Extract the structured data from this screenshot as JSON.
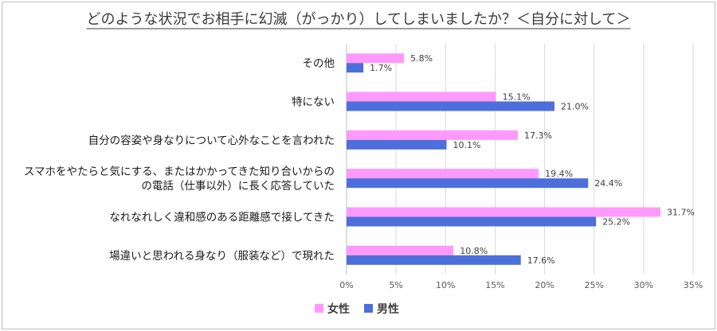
{
  "chart_data": {
    "type": "bar",
    "orientation": "horizontal",
    "title": "どのような状況でお相手に幻滅（がっかり）してしまいましたか？＜自分に対して＞",
    "categories": [
      [
        "その他"
      ],
      [
        "特にない"
      ],
      [
        "自分の容姿や身なりについて心外なことを言われた"
      ],
      [
        "スマホをやたらと気にする、またはかかってきた知り合いからの",
        "の電話（仕事以外）に長く応答していた"
      ],
      [
        "なれなれしく違和感のある距離感で接してきた"
      ],
      [
        "場違いと思われる身なり（服装など）で現れた"
      ]
    ],
    "series": [
      {
        "name": "女性",
        "color": "#ff99ff",
        "values": [
          5.8,
          15.1,
          17.3,
          19.4,
          31.7,
          10.8
        ],
        "labels": [
          "5.8%",
          "15.1%",
          "17.3%",
          "19.4%",
          "31.7%",
          "10.8%"
        ]
      },
      {
        "name": "男性",
        "color": "#4d6fdc",
        "values": [
          1.7,
          21.0,
          10.1,
          24.4,
          25.2,
          17.6
        ],
        "labels": [
          "1.7%",
          "21.0%",
          "10.1%",
          "24.4%",
          "25.2%",
          "17.6%"
        ]
      }
    ],
    "xlim": [
      0,
      35
    ],
    "xticks": [
      "0%",
      "5%",
      "10%",
      "15%",
      "20%",
      "25%",
      "30%",
      "35%"
    ],
    "xtick_values": [
      0,
      5,
      10,
      15,
      20,
      25,
      30,
      35
    ],
    "grid": "vertical",
    "legend_position": "bottom"
  }
}
